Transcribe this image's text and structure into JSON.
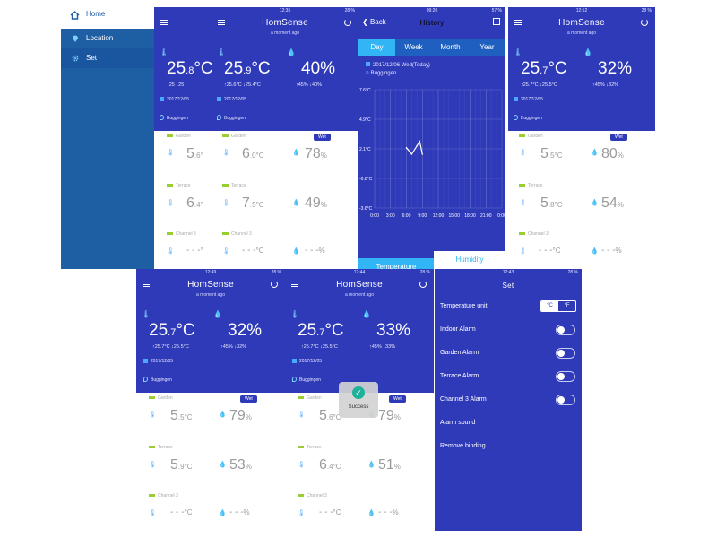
{
  "sidebar": {
    "home_label": "Home",
    "location_label": "Location",
    "set_label": "Set"
  },
  "screen_a": {
    "temp_int": "25",
    "temp_dec": ".8",
    "temp_unit": "°C",
    "max": "25",
    "min": "25",
    "date": "2017/12/05",
    "location": "Buggingen",
    "rows": [
      {
        "label": "Garden",
        "temp": "5",
        "temp_dec": ".6",
        "unit": "°"
      },
      {
        "label": "Terrace",
        "temp": "6",
        "temp_dec": ".4",
        "unit": "°"
      },
      {
        "label": "Channel 3",
        "temp": "- - -",
        "unit": "°"
      }
    ]
  },
  "screen_b": {
    "time": "12:35",
    "battery": "28 %",
    "title": "HomSense",
    "ago": "a moment ago",
    "temp_int": "25",
    "temp_dec": ".9",
    "temp_unit": "°C",
    "hum": "40%",
    "max": "25.6°C",
    "min": "25.4°C",
    "hmax": "45%",
    "hmin": "40%",
    "date": "2017/12/05",
    "location": "Buggingen",
    "wet": "Wet",
    "rows": [
      {
        "label": "Garden",
        "temp": "6",
        "temp_dec": ".0",
        "unit": "°C",
        "hum": "78",
        "hum_unit": "%"
      },
      {
        "label": "Terrace",
        "temp": "7",
        "temp_dec": ".5",
        "unit": "°C",
        "hum": "49",
        "hum_unit": "%"
      },
      {
        "label": "Channel 3",
        "temp": "- - -",
        "unit": "°C",
        "hum": "- - -",
        "hum_unit": "%"
      }
    ]
  },
  "history": {
    "time": "09:20",
    "battery": "57 %",
    "back": "Back",
    "title": "History",
    "tabs": [
      "Day",
      "Week",
      "Month",
      "Year"
    ],
    "date_line": "2017/12/06 Wed(Today)",
    "location": "Buggingen",
    "bottom_tabs": [
      "Temperature",
      "Humidity"
    ]
  },
  "chart_data": {
    "type": "line",
    "title": "",
    "xlabel": "",
    "ylabel": "",
    "x": [
      "6:00",
      "7:00",
      "8:00",
      "8:30",
      "9:00"
    ],
    "series": [
      {
        "values": [
          2.1,
          1.5,
          2.3,
          2.7,
          1.5
        ]
      }
    ],
    "xticks": [
      "0:00",
      "3:00",
      "6:00",
      "9:00",
      "12:00",
      "15:00",
      "18:00",
      "21:00",
      "0:00"
    ],
    "yticks": [
      "7.6°C",
      "4.9°C",
      "2.1°C",
      "-0.8°C",
      "-3.6°C"
    ],
    "ylim": [
      -3.6,
      7.6
    ]
  },
  "screen_d": {
    "time": "12:52",
    "battery": "28 %",
    "title": "HomSense",
    "ago": "a moment ago",
    "temp_int": "25",
    "temp_dec": ".7",
    "temp_unit": "°C",
    "hum": "32%",
    "max": "25.7°C",
    "min": "25.5°C",
    "hmax": "45%",
    "hmin": "32%",
    "date": "2017/12/05",
    "location": "Buggingen",
    "wet": "Wet",
    "rows": [
      {
        "label": "Garden",
        "temp": "5",
        "temp_dec": ".5",
        "unit": "°C",
        "hum": "80",
        "hum_unit": "%"
      },
      {
        "label": "Terrace",
        "temp": "5",
        "temp_dec": ".8",
        "unit": "°C",
        "hum": "54",
        "hum_unit": "%"
      },
      {
        "label": "Channel 3",
        "temp": "- - -",
        "unit": "°C",
        "hum": "- - -",
        "hum_unit": "%"
      }
    ]
  },
  "screen_e": {
    "time": "12:49",
    "battery": "28 %",
    "title": "HomSense",
    "ago": "a moment ago",
    "temp_int": "25",
    "temp_dec": ".7",
    "temp_unit": "°C",
    "hum": "32%",
    "max": "25.7°C",
    "min": "25.5°C",
    "hmax": "45%",
    "hmin": "32%",
    "date": "2017/12/05",
    "location": "Buggingen",
    "wet": "Wet",
    "rows": [
      {
        "label": "Garden",
        "temp": "5",
        "temp_dec": ".5",
        "unit": "°C",
        "hum": "79",
        "hum_unit": "%"
      },
      {
        "label": "Terrace",
        "temp": "5",
        "temp_dec": ".9",
        "unit": "°C",
        "hum": "53",
        "hum_unit": "%"
      },
      {
        "label": "Channel 3",
        "temp": "- - -",
        "unit": "°C",
        "hum": "- - -",
        "hum_unit": "%"
      }
    ]
  },
  "screen_f": {
    "time": "12:44",
    "battery": "28 %",
    "title": "HomSense",
    "ago": "a moment ago",
    "temp_int": "25",
    "temp_dec": ".7",
    "temp_unit": "°C",
    "hum": "33%",
    "max": "25.7°C",
    "min": "25.5°C",
    "hmax": "45%",
    "hmin": "33%",
    "date": "2017/12/05",
    "location": "Buggingen",
    "wet": "Wet",
    "success": "Success",
    "rows": [
      {
        "label": "Garden",
        "temp": "5",
        "temp_dec": ".6",
        "unit": "°C",
        "hum": "79",
        "hum_unit": "%"
      },
      {
        "label": "Terrace",
        "temp": "6",
        "temp_dec": ".4",
        "unit": "°C",
        "hum": "51",
        "hum_unit": "%"
      },
      {
        "label": "Channel 3",
        "temp": "- - -",
        "unit": "°C",
        "hum": "- - -",
        "hum_unit": "%"
      }
    ]
  },
  "settings": {
    "time": "12:43",
    "battery": "28 %",
    "title": "Set",
    "temp_unit_label": "Temperature unit",
    "unit_c": "°C",
    "unit_f": "°F",
    "items": [
      "Indoor Alarm",
      "Garden Alarm",
      "Terrace Alarm",
      "Channel 3 Alarm"
    ],
    "alarm_sound": "Alarm sound",
    "remove_binding": "Remove binding"
  },
  "colors": {
    "header": "#2f3ab8",
    "accent": "#31b5f5",
    "sidebar": "#1e5fa4"
  }
}
